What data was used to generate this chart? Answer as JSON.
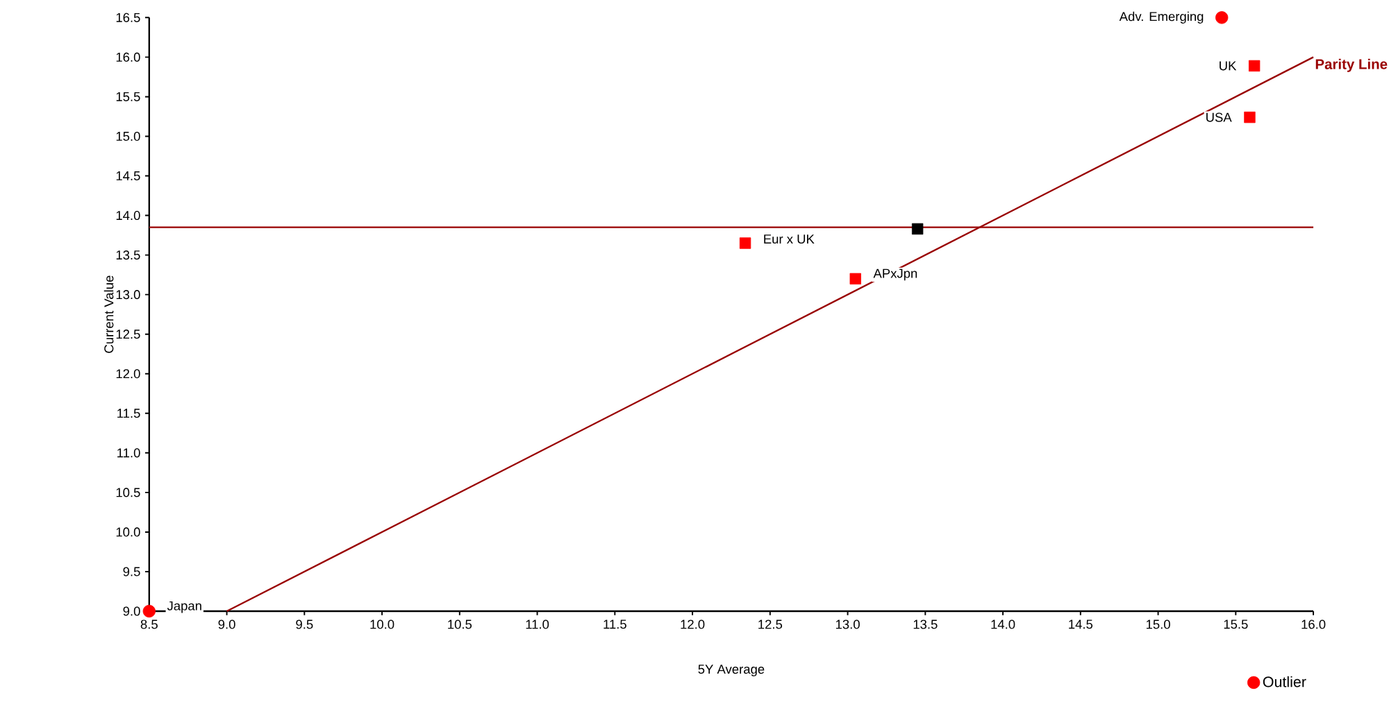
{
  "chart_data": {
    "type": "scatter",
    "xlabel": "5Y Average",
    "ylabel": "Current Value",
    "xlim": [
      8.5,
      16.0
    ],
    "ylim": [
      9.0,
      16.5
    ],
    "xticks": [
      {
        "value": 8.5,
        "label": "8.5"
      },
      {
        "value": 9,
        "label": "9.0"
      },
      {
        "value": 9.5,
        "label": "9.5"
      },
      {
        "value": 10,
        "label": "10.0"
      },
      {
        "value": 10.5,
        "label": "10.5"
      },
      {
        "value": 11,
        "label": "11.0"
      },
      {
        "value": 11.5,
        "label": "11.5"
      },
      {
        "value": 12,
        "label": "12.0"
      },
      {
        "value": 12.5,
        "label": "12.5"
      },
      {
        "value": 13,
        "label": "13.0"
      },
      {
        "value": 13.5,
        "label": "13.5"
      },
      {
        "value": 14,
        "label": "14.0"
      },
      {
        "value": 14.5,
        "label": "14.5"
      },
      {
        "value": 15,
        "label": "15.0"
      },
      {
        "value": 15.5,
        "label": "15.5"
      },
      {
        "value": 16,
        "label": "16.0"
      }
    ],
    "yticks": [
      {
        "value": 9,
        "label": "9.0"
      },
      {
        "value": 9.5,
        "label": "9.5"
      },
      {
        "value": 10,
        "label": "10.0"
      },
      {
        "value": 10.5,
        "label": "10.5"
      },
      {
        "value": 11,
        "label": "11.0"
      },
      {
        "value": 11.5,
        "label": "11.5"
      },
      {
        "value": 12,
        "label": "12.0"
      },
      {
        "value": 12.5,
        "label": "12.5"
      },
      {
        "value": 13,
        "label": "13.0"
      },
      {
        "value": 13.5,
        "label": "13.5"
      },
      {
        "value": 14,
        "label": "14.0"
      },
      {
        "value": 14.5,
        "label": "14.5"
      },
      {
        "value": 15,
        "label": "15.0"
      },
      {
        "value": 15.5,
        "label": "15.5"
      },
      {
        "value": 16,
        "label": "16.0"
      },
      {
        "value": 16.5,
        "label": "16.5"
      }
    ],
    "grid": false,
    "legend": "bottom right",
    "series": [
      {
        "marker": "square",
        "color": "#ff0000",
        "x": [
          15.62,
          15.59,
          12.34,
          13.05
        ],
        "values": [
          15.89,
          15.24,
          13.65,
          13.2
        ]
      },
      {
        "marker": "square",
        "color": "#000000",
        "x": [
          13.45
        ],
        "values": [
          13.83
        ]
      },
      {
        "name": "Outlier",
        "marker": "circle",
        "color": "#ff0000",
        "x": [
          15.41,
          8.5
        ],
        "values": [
          16.5,
          9.0
        ]
      },
      {
        "type": "line",
        "name": "Parity Line",
        "marker": "none",
        "color": "#990000",
        "x": [
          9.0,
          16.0
        ],
        "values": [
          9.0,
          16.0
        ]
      }
    ],
    "ref_lines": [
      {
        "axis": "y",
        "value": 13.85,
        "color": "#990000"
      }
    ],
    "annotations": [
      {
        "text": "Adv. Emerging",
        "x": 15.41,
        "y": 16.5
      },
      {
        "text": "UK",
        "x": 15.62,
        "y": 15.89
      },
      {
        "text": "USA",
        "x": 15.59,
        "y": 15.24
      },
      {
        "text": "Eur x UK",
        "x": 12.34,
        "y": 13.65
      },
      {
        "text": "APxJpn",
        "x": 13.05,
        "y": 13.2
      },
      {
        "text": "Japan",
        "x": 8.5,
        "y": 9.0
      }
    ]
  }
}
